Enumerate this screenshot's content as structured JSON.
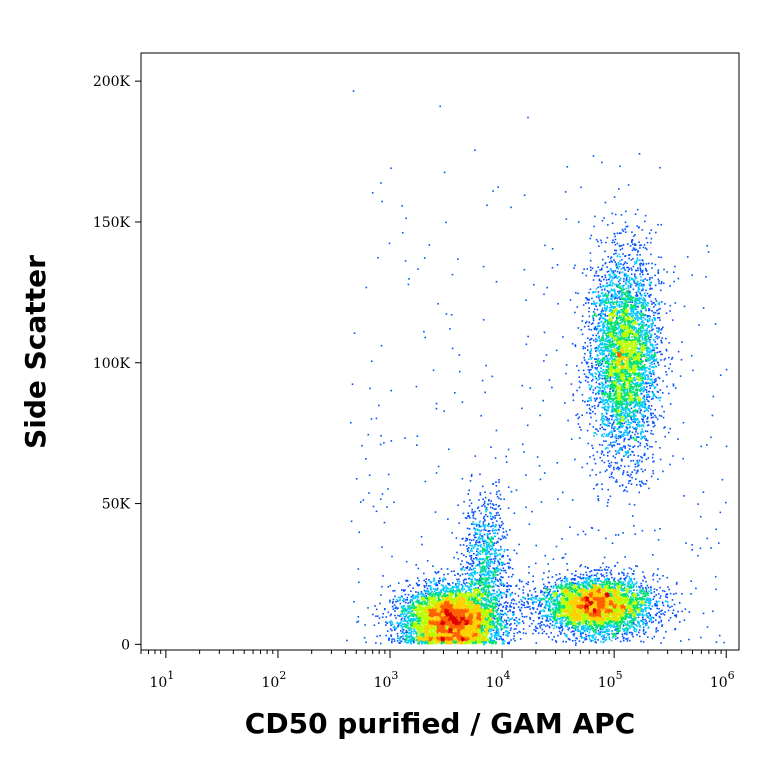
{
  "chart_data": {
    "type": "scatter",
    "title": "",
    "xlabel": "CD50 purified / GAM APC",
    "ylabel": "Side Scatter",
    "x_scale": "log",
    "xlim": [
      6,
      1300000
    ],
    "ylim": [
      -2000,
      210000
    ],
    "x_ticks": [
      {
        "value": 10,
        "base": "10",
        "exp": "1"
      },
      {
        "value": 100,
        "base": "10",
        "exp": "2"
      },
      {
        "value": 1000,
        "base": "10",
        "exp": "3"
      },
      {
        "value": 10000,
        "base": "10",
        "exp": "4"
      },
      {
        "value": 100000,
        "base": "10",
        "exp": "5"
      },
      {
        "value": 1000000,
        "base": "10",
        "exp": "6"
      }
    ],
    "y_ticks": [
      {
        "value": 0,
        "label": "0"
      },
      {
        "value": 50000,
        "label": "50K"
      },
      {
        "value": 100000,
        "label": "100K"
      },
      {
        "value": 150000,
        "label": "150K"
      },
      {
        "value": 200000,
        "label": "200K"
      }
    ],
    "grid": false,
    "legend": "none",
    "colormap": [
      "#0000cc",
      "#0050ff",
      "#00c8ff",
      "#00e070",
      "#b8ff00",
      "#ffd000",
      "#ff6000",
      "#e00000"
    ],
    "populations": [
      {
        "name": "",
        "x_center": 3500,
        "y_center": 9000,
        "x_spread_log": 0.22,
        "y_spread": 6000,
        "points": 5500
      },
      {
        "name": "",
        "x_center": 70000,
        "y_center": 14000,
        "x_spread_log": 0.25,
        "y_spread": 5000,
        "points": 4500
      },
      {
        "name": "",
        "x_center": 120000,
        "y_center": 103000,
        "x_spread_log": 0.15,
        "y_spread": 18000,
        "points": 4500
      },
      {
        "name": "",
        "x_center": 7000,
        "y_center": 30000,
        "x_spread_log": 0.1,
        "y_spread": 12000,
        "points": 900
      }
    ]
  }
}
